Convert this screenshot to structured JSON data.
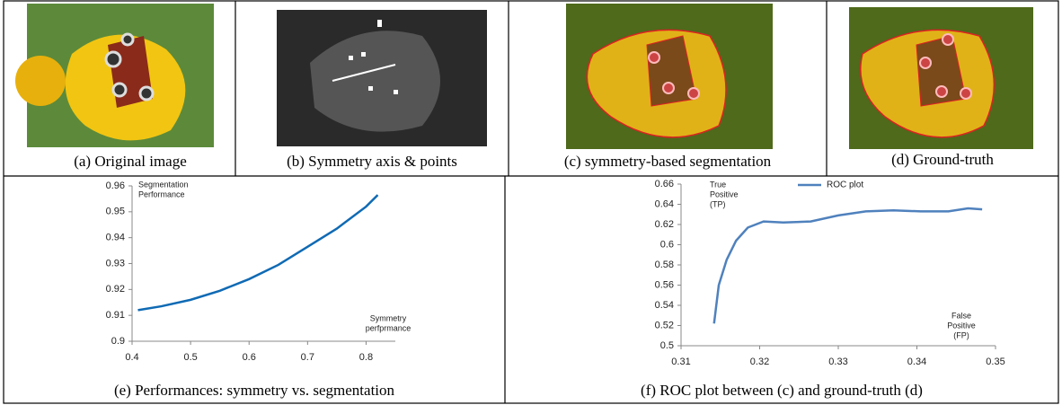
{
  "captions": [
    "(a) Original image",
    "(b) Symmetry axis & points",
    "(c) symmetry-based segmentation",
    "(d) Ground-truth",
    "(e) Performances: symmetry vs. segmentation",
    "(f)  ROC plot between (c) and ground-truth (d)"
  ],
  "chart_data": [
    {
      "type": "line",
      "y_label": [
        "Segmentation",
        "Performance"
      ],
      "x_label": [
        "Symmetry",
        "perfprmance"
      ],
      "x": [
        0.41,
        0.45,
        0.5,
        0.55,
        0.6,
        0.65,
        0.7,
        0.75,
        0.8,
        0.82
      ],
      "series": [
        {
          "color": "#0f6ab4",
          "values": [
            0.912,
            0.9135,
            0.916,
            0.9195,
            0.924,
            0.9295,
            0.9365,
            0.9435,
            0.952,
            0.9565
          ]
        }
      ],
      "xlim": [
        0.4,
        0.85
      ],
      "xticks": [
        0.4,
        0.5,
        0.6,
        0.7,
        0.8
      ],
      "ylim": [
        0.9,
        0.96
      ],
      "yticks": [
        0.9,
        0.91,
        0.92,
        0.93,
        0.94,
        0.95,
        0.96
      ]
    },
    {
      "type": "line",
      "y_label": [
        "True",
        "Positive",
        "(TP)"
      ],
      "x_label": [
        "False",
        "Positive",
        "(FP)"
      ],
      "x": [
        0.3142,
        0.3148,
        0.3158,
        0.317,
        0.3185,
        0.3205,
        0.323,
        0.3265,
        0.33,
        0.3335,
        0.337,
        0.3405,
        0.344,
        0.3465,
        0.3483
      ],
      "series": [
        {
          "name": "ROC plot",
          "color": "#4f81bd",
          "values": [
            0.522,
            0.56,
            0.585,
            0.604,
            0.617,
            0.623,
            0.622,
            0.623,
            0.629,
            0.633,
            0.634,
            0.633,
            0.633,
            0.636,
            0.635
          ]
        }
      ],
      "xlim": [
        0.31,
        0.35
      ],
      "xticks": [
        0.31,
        0.32,
        0.33,
        0.34,
        0.35
      ],
      "ylim": [
        0.5,
        0.66
      ],
      "yticks": [
        0.5,
        0.52,
        0.54,
        0.56,
        0.58,
        0.6,
        0.62,
        0.64,
        0.66
      ],
      "legend": "top"
    }
  ]
}
